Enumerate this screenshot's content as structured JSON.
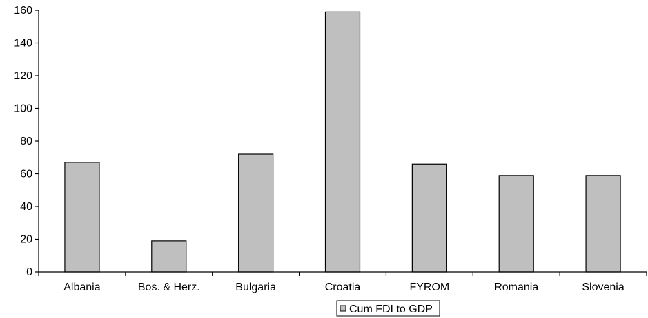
{
  "chart_data": {
    "type": "bar",
    "categories": [
      "Albania",
      "Bos. & Herz.",
      "Bulgaria",
      "Croatia",
      "FYROM",
      "Romania",
      "Slovenia"
    ],
    "series": [
      {
        "name": "Cum FDI to GDP",
        "values": [
          67,
          19,
          72,
          159,
          66,
          59,
          59
        ],
        "color": "#bfbfbf"
      }
    ],
    "ylim": [
      0,
      160
    ],
    "yticks": [
      "0",
      "20",
      "40",
      "60",
      "80",
      "100",
      "120",
      "140",
      "160"
    ],
    "grid": false,
    "legend": {
      "position": "bottom-center",
      "label": "Cum FDI to GDP"
    },
    "colors": {
      "bar_fill": "#bfbfbf",
      "bar_stroke": "#000000",
      "axis": "#000000"
    }
  }
}
